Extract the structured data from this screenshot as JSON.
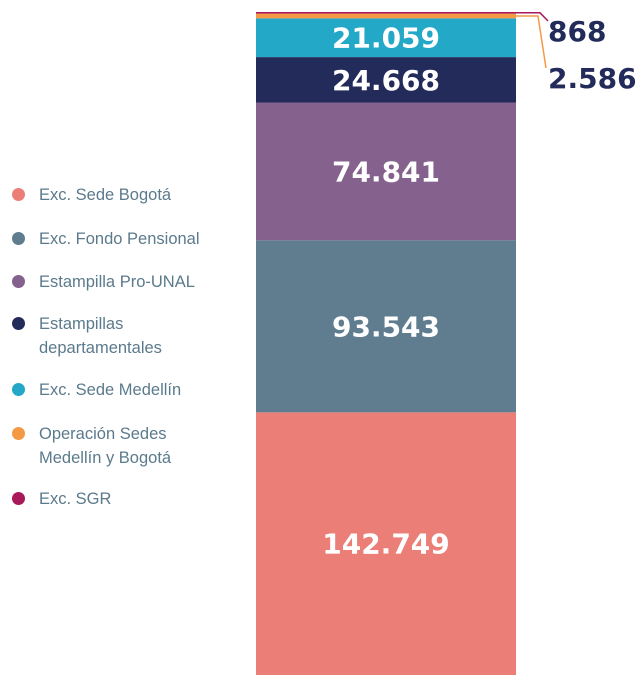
{
  "chart_data": {
    "type": "stacked-bar",
    "series": [
      {
        "name": "Exc. Sede Bogotá",
        "color": "#eb7f78",
        "values": [
          142749
        ],
        "value_labels": [
          "142.749"
        ]
      },
      {
        "name": "Exc. Fondo Pensional",
        "color": "#607d8f",
        "values": [
          93543
        ],
        "value_labels": [
          "93.543"
        ]
      },
      {
        "name": "Estampilla Pro-UNAL",
        "color": "#85618d",
        "values": [
          74841
        ],
        "value_labels": [
          "74.841"
        ]
      },
      {
        "name": "Estampillas departamentales",
        "color": "#232b5a",
        "values": [
          24668
        ],
        "value_labels": [
          "24.668"
        ]
      },
      {
        "name": "Exc. Sede Medellín",
        "color": "#23a8c7",
        "values": [
          21059
        ],
        "value_labels": [
          "21.059"
        ]
      },
      {
        "name": "Operación Sedes Medellín y Bogotá",
        "color": "#f49a45",
        "values": [
          2586
        ],
        "value_labels": [
          "2.586"
        ]
      },
      {
        "name": "Exc. SGR",
        "color": "#a8185a",
        "values": [
          868
        ],
        "value_labels": [
          "868"
        ]
      }
    ]
  }
}
